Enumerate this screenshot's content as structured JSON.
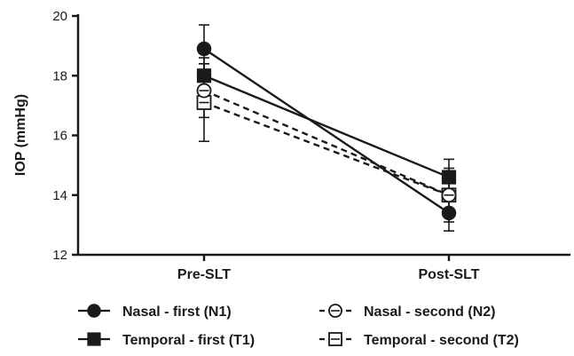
{
  "chart_data": {
    "type": "line",
    "title": "",
    "xlabel": "",
    "ylabel": "IOP (mmHg)",
    "categories": [
      "Pre-SLT",
      "Post-SLT"
    ],
    "ylim": [
      12,
      20
    ],
    "yticks": [
      "12",
      "14",
      "16",
      "18",
      "20"
    ],
    "legend_placement": "bottom",
    "series": [
      {
        "name": "Nasal - first (N1)",
        "values": [
          18.9,
          13.4
        ],
        "err": [
          0.8,
          0.6
        ],
        "marker": "circle-filled",
        "dash": "solid"
      },
      {
        "name": "Nasal - second (N2)",
        "values": [
          17.5,
          14.0
        ],
        "err": [
          0.9,
          0.7
        ],
        "marker": "circle-open",
        "dash": "dashed"
      },
      {
        "name": "Temporal - first (T1)",
        "values": [
          18.0,
          14.6
        ],
        "err": [
          0.6,
          0.6
        ],
        "marker": "square-filled",
        "dash": "solid"
      },
      {
        "name": "Temporal - second (T2)",
        "values": [
          17.1,
          14.0
        ],
        "err": [
          1.3,
          0.9
        ],
        "marker": "square-open",
        "dash": "dashed"
      }
    ],
    "colors": {
      "ink": "#1a1a1a",
      "background": "#ffffff"
    }
  }
}
